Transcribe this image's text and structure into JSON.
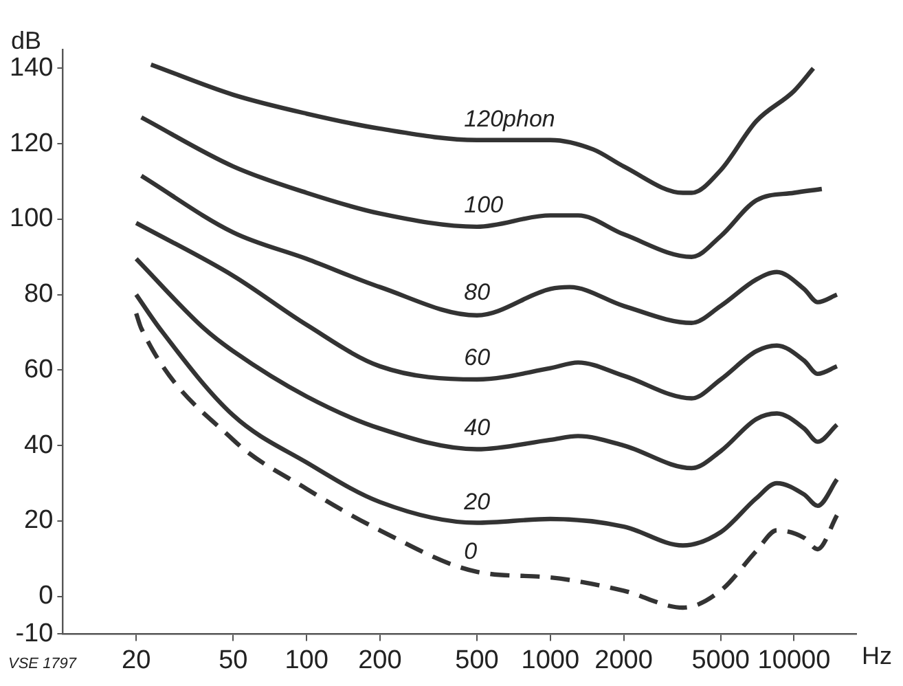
{
  "chart_data": {
    "type": "line",
    "xlabel": "Hz",
    "ylabel": "dB",
    "log": "x",
    "xlim": [
      10,
      18000
    ],
    "xticks": [
      20,
      50,
      100,
      200,
      500,
      1000,
      2000,
      5000,
      10000
    ],
    "ylim": [
      -10,
      145
    ],
    "yticks": [
      -10,
      0,
      20,
      40,
      60,
      80,
      100,
      120,
      140
    ],
    "grid": false,
    "legend": false,
    "marker": "none",
    "annotations": [
      "VSE 1797"
    ],
    "series": [
      {
        "name": "120phon",
        "color": "#333333",
        "line_style": "solid",
        "x": [
          23,
          50,
          100,
          200,
          500,
          1000,
          1500,
          2000,
          3500,
          3800,
          5000,
          7000,
          10000,
          12000
        ],
        "values": [
          141,
          133,
          128,
          124,
          121,
          121,
          118.5,
          114,
          107,
          107,
          113,
          126,
          134,
          140
        ]
      },
      {
        "name": "100",
        "color": "#333333",
        "line_style": "solid",
        "x": [
          21,
          50,
          100,
          200,
          500,
          1000,
          1300,
          2000,
          3800,
          5000,
          7000,
          10000,
          13000
        ],
        "values": [
          127,
          114,
          107,
          101.5,
          98,
          101,
          101,
          96,
          90,
          95.5,
          105,
          107,
          108
        ]
      },
      {
        "name": "80",
        "color": "#333333",
        "line_style": "solid",
        "x": [
          21,
          50,
          100,
          200,
          500,
          1000,
          1200,
          2000,
          3800,
          5000,
          7000,
          8500,
          11000,
          12500,
          15000
        ],
        "values": [
          111.5,
          96.5,
          89.5,
          82,
          74.5,
          81.5,
          82,
          77,
          72.5,
          77,
          84,
          86,
          81.5,
          78,
          80
        ]
      },
      {
        "name": "60",
        "color": "#333333",
        "line_style": "solid",
        "x": [
          20,
          50,
          100,
          200,
          500,
          1000,
          1300,
          2000,
          3800,
          5000,
          7000,
          8500,
          11000,
          12500,
          15000
        ],
        "values": [
          99,
          85,
          72,
          61,
          57.5,
          60.5,
          62,
          58.5,
          52.5,
          57.5,
          65,
          66.5,
          62.5,
          59,
          61
        ]
      },
      {
        "name": "40",
        "color": "#333333",
        "line_style": "solid",
        "x": [
          20,
          38,
          50,
          100,
          200,
          500,
          1000,
          1300,
          2000,
          3800,
          5000,
          7000,
          8500,
          11000,
          12500,
          15000
        ],
        "values": [
          89.5,
          71,
          65,
          53,
          44.5,
          39,
          41.5,
          42.5,
          40,
          34,
          38.5,
          47,
          48.5,
          44.5,
          41,
          45.5
        ]
      },
      {
        "name": "20",
        "color": "#333333",
        "line_style": "solid",
        "x": [
          20,
          25,
          50,
          100,
          200,
          500,
          1000,
          2000,
          3500,
          5000,
          7000,
          8500,
          11000,
          12500,
          15000
        ],
        "values": [
          80,
          71,
          48,
          35.5,
          25,
          19.5,
          20.5,
          18.5,
          13.5,
          17,
          26,
          30,
          27,
          24,
          31
        ]
      },
      {
        "name": "0",
        "color": "#333333",
        "line_style": "dashed",
        "x": [
          20,
          21,
          50,
          100,
          200,
          500,
          1000,
          2000,
          3500,
          5000,
          7000,
          8500,
          11000,
          12500,
          15000
        ],
        "values": [
          75,
          71,
          41.5,
          28.5,
          17.5,
          6.5,
          5,
          1.5,
          -3,
          1.5,
          12,
          17.5,
          15.5,
          12.5,
          21.5
        ]
      }
    ]
  }
}
